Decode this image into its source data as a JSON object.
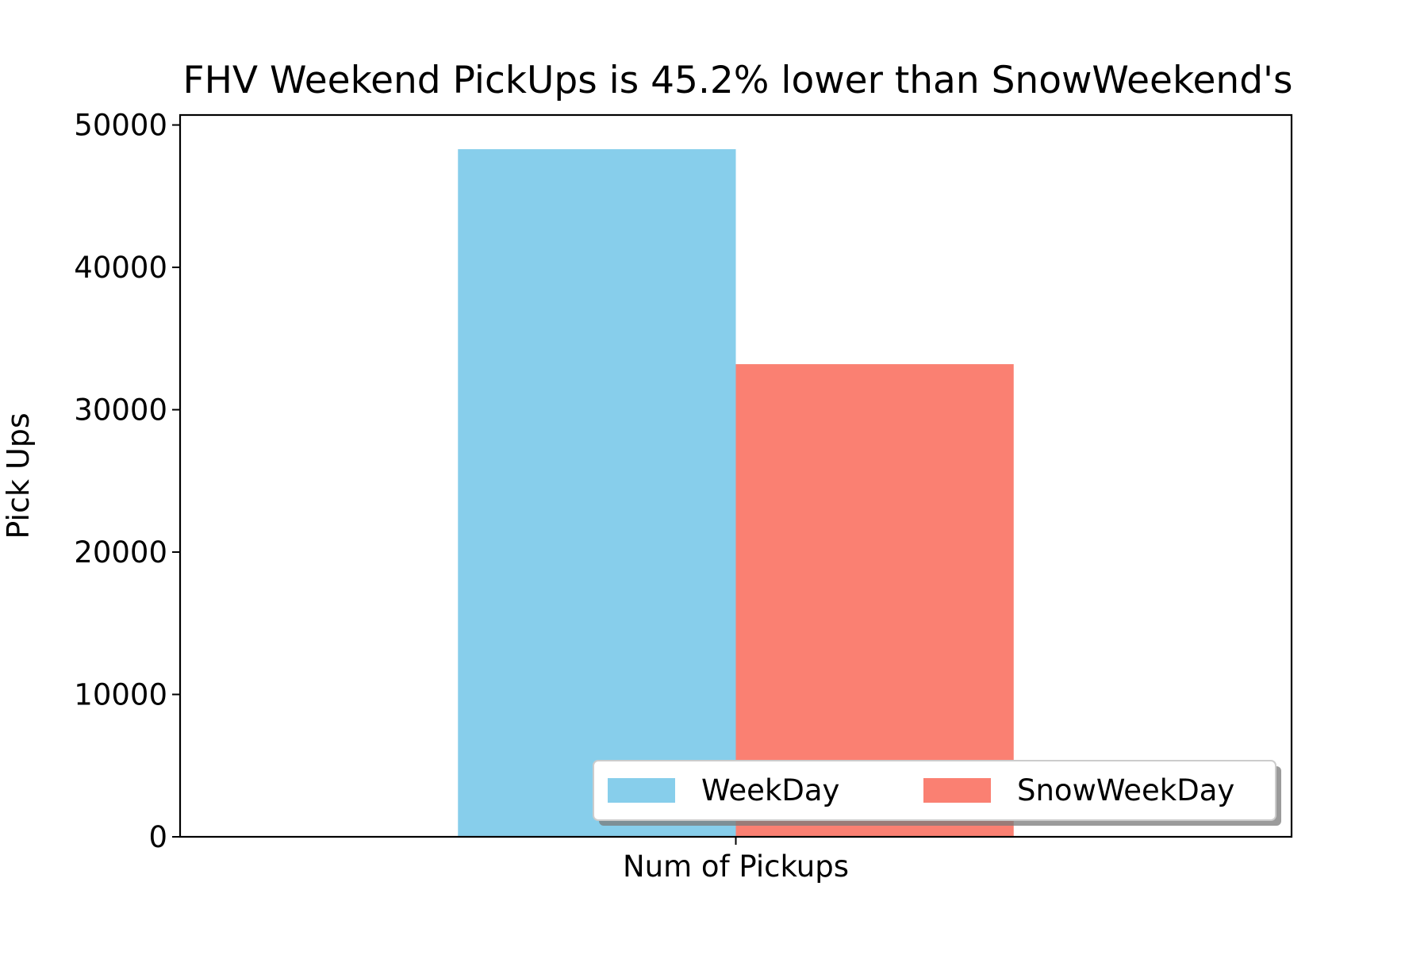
{
  "chart_data": {
    "type": "bar",
    "title": "FHV Weekend PickUps is 45.2% lower than SnowWeekend's",
    "xlabel": "",
    "ylabel": "Pick Ups",
    "categories": [
      "Num of Pickups"
    ],
    "series": [
      {
        "name": "WeekDay",
        "values": [
          48300
        ],
        "color": "#87CEEB"
      },
      {
        "name": "SnowWeekDay",
        "values": [
          33200
        ],
        "color": "#FA8072"
      }
    ],
    "ylim": [
      0,
      50700
    ],
    "yticks": [
      0,
      10000,
      20000,
      30000,
      40000,
      50000
    ],
    "legend": {
      "position": "lower-right",
      "shadow": true,
      "columns": 2
    },
    "grid": false
  }
}
